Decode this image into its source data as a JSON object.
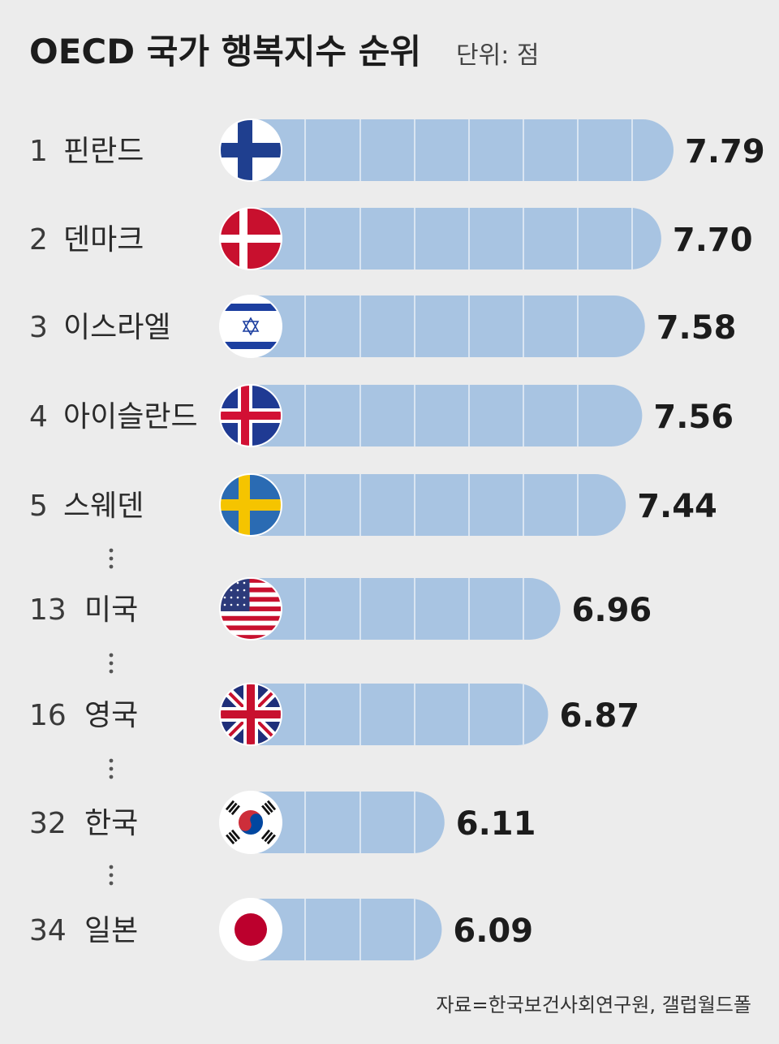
{
  "chart_data": {
    "type": "bar",
    "title": "OECD 국가 행복지수 순위",
    "unit": "단위: 점",
    "source": "자료=한국보건사회연구원, 갤럽월드폴",
    "rows": [
      {
        "rank": "1",
        "country": "핀란드",
        "value": 7.79,
        "label": "7.79",
        "flag": "finland-flag"
      },
      {
        "rank": "2",
        "country": "덴마크",
        "value": 7.7,
        "label": "7.70",
        "flag": "denmark-flag"
      },
      {
        "rank": "3",
        "country": "이스라엘",
        "value": 7.58,
        "label": "7.58",
        "flag": "israel-flag"
      },
      {
        "rank": "4",
        "country": "아이슬란드",
        "value": 7.56,
        "label": "7.56",
        "flag": "iceland-flag"
      },
      {
        "rank": "5",
        "country": "스웨덴",
        "value": 7.44,
        "label": "7.44",
        "flag": "sweden-flag"
      },
      {
        "rank": "13",
        "country": "미국",
        "value": 6.96,
        "label": "6.96",
        "flag": "usa-flag"
      },
      {
        "rank": "16",
        "country": "영국",
        "value": 6.87,
        "label": "6.87",
        "flag": "uk-flag"
      },
      {
        "rank": "32",
        "country": "한국",
        "value": 6.11,
        "label": "6.11",
        "flag": "korea-flag"
      },
      {
        "rank": "34",
        "country": "일본",
        "value": 6.09,
        "label": "6.09",
        "flag": "japan-flag"
      }
    ],
    "gaps_after_rank": [
      "5",
      "13",
      "16",
      "32"
    ]
  },
  "colors": {
    "bar": "#a8c4e2",
    "bar_divider": "#d9e5f2",
    "background": "#ececec"
  }
}
